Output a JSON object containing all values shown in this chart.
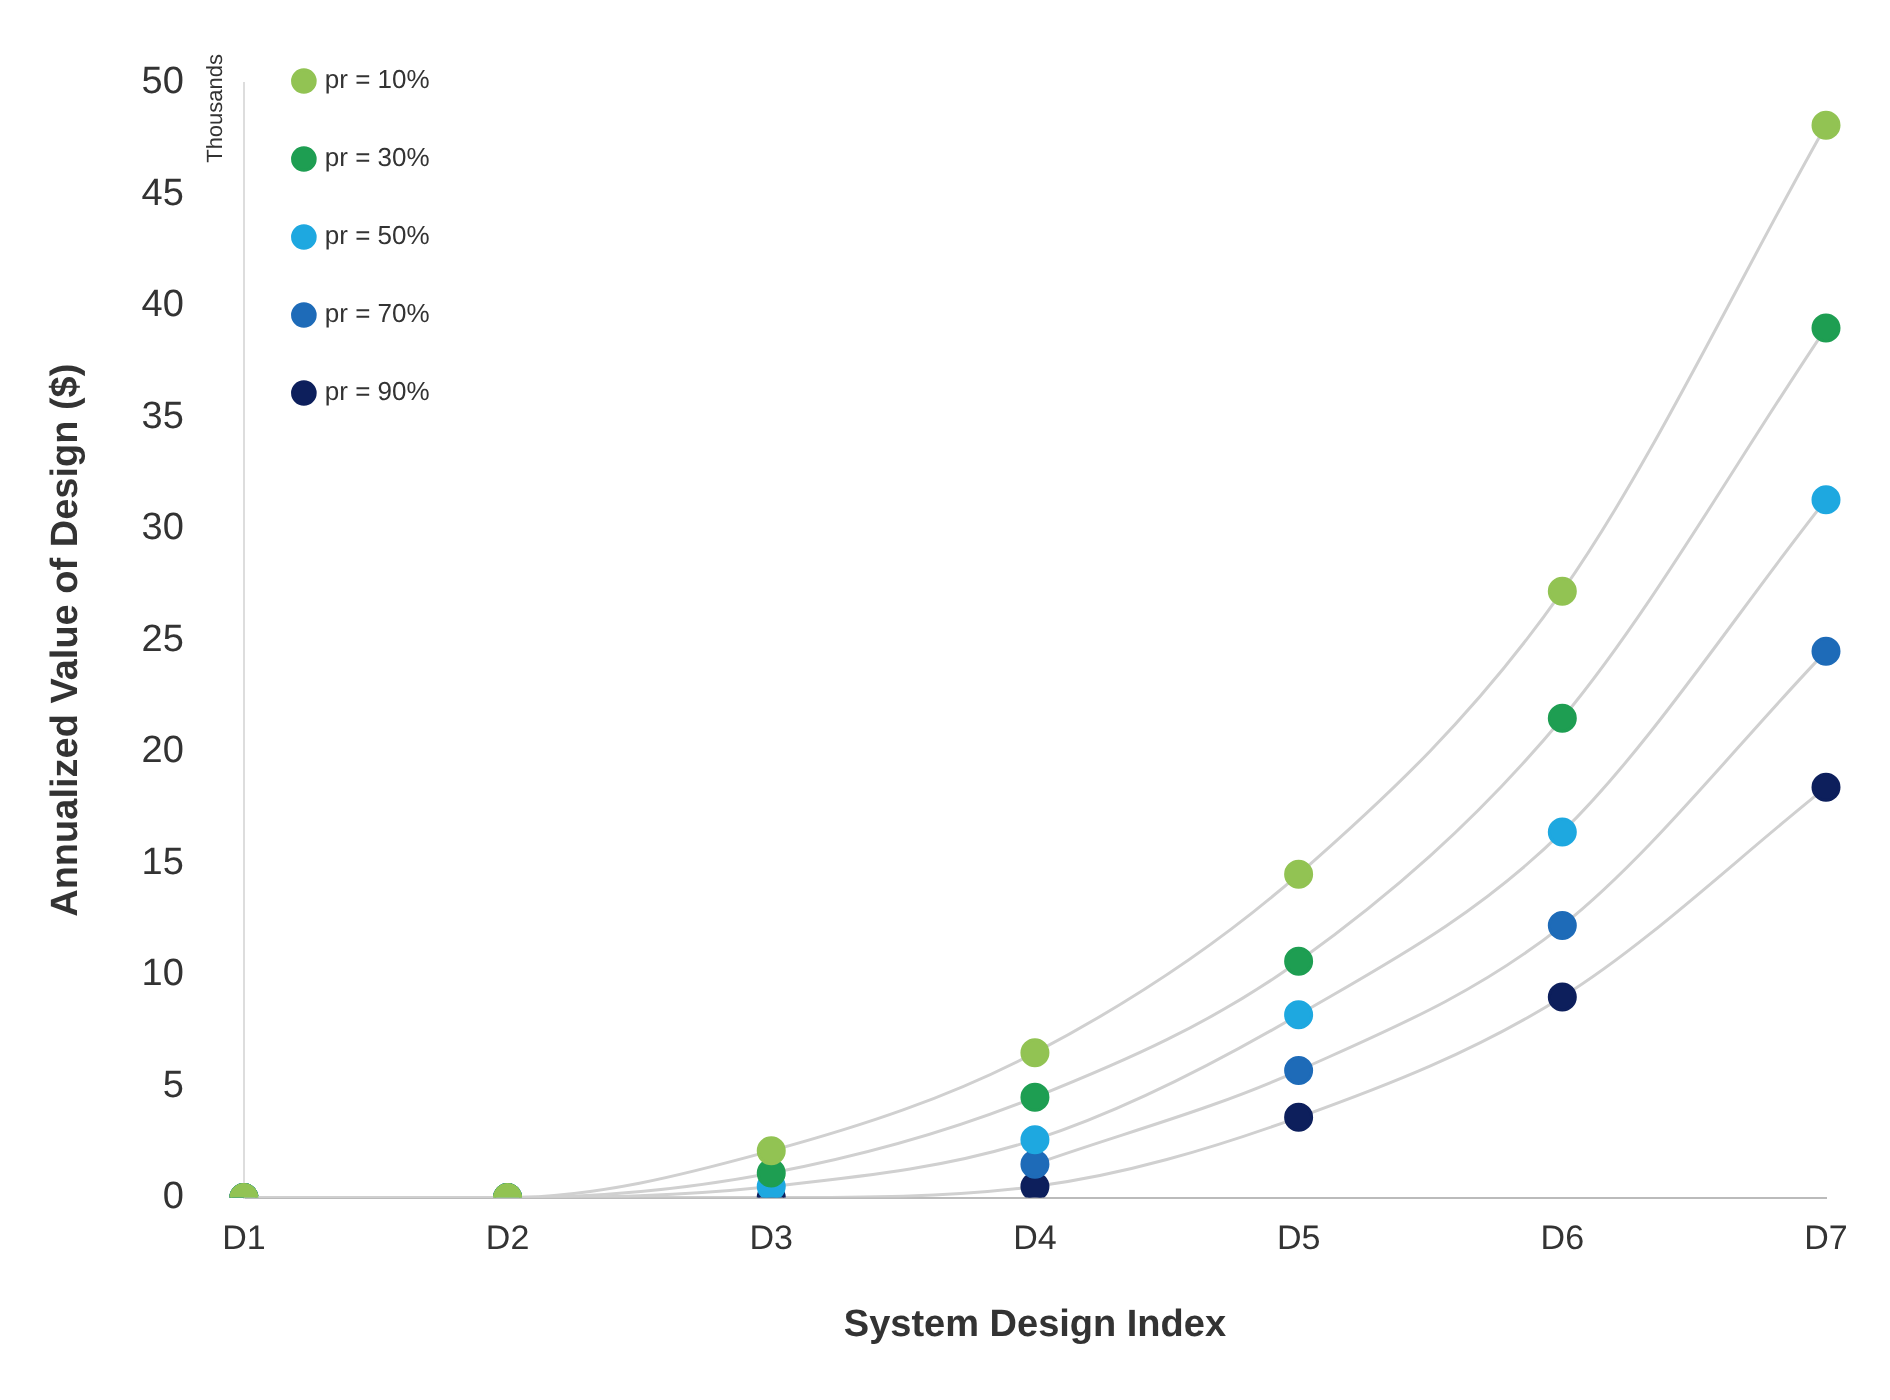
{
  "chart_data": {
    "type": "line",
    "xlabel": "System Design Index",
    "ylabel": "Annualized Value of Design ($)",
    "annotations": [
      "Thousands"
    ],
    "categories": [
      "D1",
      "D2",
      "D3",
      "D4",
      "D5",
      "D6",
      "D7"
    ],
    "series": [
      {
        "name": "pr = 10%",
        "color": "#92c353",
        "values": [
          0,
          0,
          2.1,
          6.5,
          14.5,
          27.2,
          48.1
        ]
      },
      {
        "name": "pr = 30%",
        "color": "#1e9e52",
        "values": [
          0,
          0,
          1.1,
          4.5,
          10.6,
          21.5,
          39.0
        ]
      },
      {
        "name": "pr = 50%",
        "color": "#1ea8e0",
        "values": [
          0,
          0,
          0.5,
          2.6,
          8.2,
          16.4,
          31.3
        ]
      },
      {
        "name": "pr = 70%",
        "color": "#1e6bb8",
        "values": [
          0,
          0,
          null,
          1.5,
          5.7,
          12.2,
          24.5
        ]
      },
      {
        "name": "pr = 90%",
        "color": "#0d1f5c",
        "values": [
          0,
          0,
          0,
          0.5,
          3.6,
          9.0,
          18.4
        ]
      }
    ],
    "ylim": [
      0,
      50
    ],
    "yticks": [
      0,
      5,
      10,
      15,
      20,
      25,
      30,
      35,
      40,
      45,
      50
    ],
    "grid": false,
    "legend": "top left",
    "marker": "circle"
  }
}
